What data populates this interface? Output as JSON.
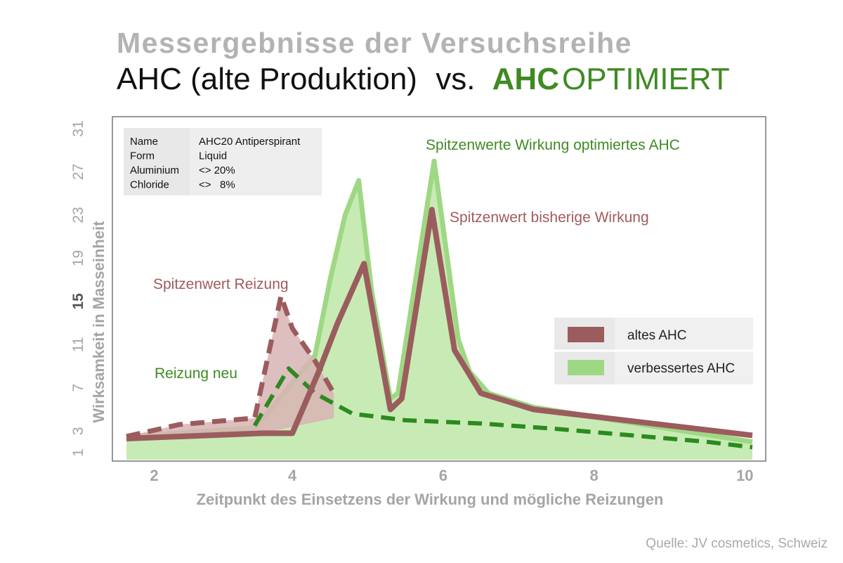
{
  "title": {
    "line1": "Messergebnisse der Versuchsreihe",
    "line2_part1": "AHC (alte Produktion)",
    "line2_vs": "vs.",
    "line2_ahc": "AHC",
    "line2_optimiert": "OPTIMIERT"
  },
  "source": "Quelle: JV cosmetics, Schweiz",
  "info_box": {
    "rows": [
      {
        "key": "Name",
        "value": "AHC20 Antiperspirant"
      },
      {
        "key": "Form",
        "value": "Liquid"
      },
      {
        "key": "Aluminium",
        "value": "<> 20%"
      },
      {
        "key": "Chloride",
        "value": "<>   8%"
      }
    ]
  },
  "annotations": {
    "peak_optimized": "Spitzenwerte Wirkung optimiertes AHC",
    "peak_old": "Spitzenwert bisherige Wirkung",
    "peak_irritation": "Spitzenwert Reizung",
    "irritation_new": "Reizung neu"
  },
  "legend": {
    "old": "altes AHC",
    "improved": "verbessertes AHC"
  },
  "colors": {
    "old": "#9b5c5e",
    "improved": "#9fd884",
    "improved_fill": "#c8ebb5",
    "irritation_old_fill": "#d8b4b4",
    "irritation_new": "#2c8a1e",
    "title_green": "#3f8a23",
    "annotation_green": "#3f8a23",
    "annotation_red": "#a25a5e"
  },
  "chart_data": {
    "type": "area",
    "xlabel": "Zeitpunkt des Einsetzens der Wirkung und mögliche Reizungen",
    "ylabel": "Wirksamkeit in Masseinheit",
    "x_ticks": [
      "2",
      "4",
      "6",
      "8",
      "10"
    ],
    "y_ticks": [
      "1",
      "3",
      "7",
      "11",
      "15",
      "19",
      "23",
      "27",
      "31"
    ],
    "xlim": [
      1.8,
      10.1
    ],
    "ylim": [
      1,
      32
    ],
    "series": [
      {
        "name": "verbessertes AHC",
        "style": "filled area",
        "x": [
          1.8,
          3.5,
          3.65,
          4.0,
          4.3,
          4.5,
          4.7,
          4.88,
          5.05,
          5.3,
          5.4,
          5.88,
          6.2,
          6.35,
          6.6,
          7.2,
          10.1
        ],
        "y": [
          2.5,
          3.3,
          4.5,
          7.5,
          10.0,
          17.0,
          23.0,
          26.2,
          16.0,
          6.0,
          6.5,
          28.0,
          11.5,
          8.5,
          6.5,
          5.2,
          2.0
        ]
      },
      {
        "name": "altes AHC",
        "style": "line",
        "x": [
          1.8,
          3.6,
          4.0,
          4.35,
          4.6,
          4.95,
          5.3,
          5.45,
          5.85,
          6.15,
          6.5,
          7.2,
          10.1
        ],
        "y": [
          2.3,
          2.8,
          2.8,
          8.5,
          13.0,
          18.5,
          5.0,
          6.0,
          23.5,
          10.5,
          6.5,
          5.0,
          2.6
        ]
      },
      {
        "name": "Spitzenwert Reizung",
        "style": "dashed filled",
        "x": [
          1.8,
          2.5,
          3.5,
          3.85,
          4.0,
          4.3,
          4.55
        ],
        "y": [
          2.5,
          3.6,
          4.2,
          15.5,
          12.5,
          9.5,
          6.5
        ]
      },
      {
        "name": "Reizung neu",
        "style": "dashed line",
        "x": [
          3.5,
          3.95,
          4.3,
          4.8,
          5.5,
          6.5,
          7.5,
          8.5,
          9.5,
          10.1
        ],
        "y": [
          3.5,
          8.8,
          6.5,
          4.6,
          4.0,
          3.7,
          3.2,
          2.6,
          2.0,
          1.5
        ]
      }
    ]
  }
}
